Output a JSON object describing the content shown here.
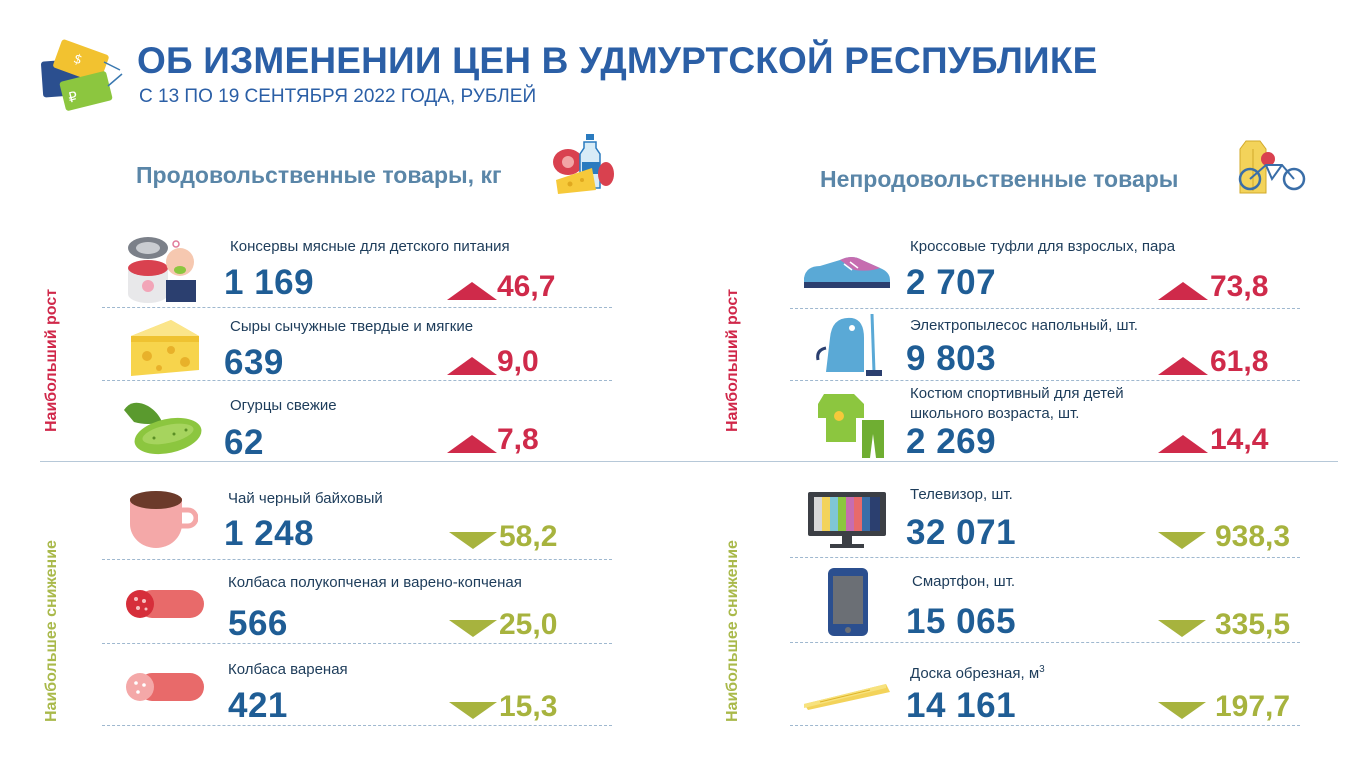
{
  "header": {
    "title": "ОБ ИЗМЕНЕНИИ ЦЕН В УДМУРТСКОЙ РЕСПУБЛИКЕ",
    "subtitle": "С 13 ПО 19 СЕНТЯБРЯ 2022 ГОДА, РУБЛЕЙ",
    "logo_glyphs": [
      "₽",
      "$"
    ]
  },
  "sections": {
    "food": "Продовольственные товары, кг",
    "nonfood": "Непродовольственные товары"
  },
  "side_labels": {
    "growth": "Наибольший рост",
    "decline": "Наибольшее снижение"
  },
  "colors": {
    "title": "#2b5fa6",
    "price": "#1f5d95",
    "increase": "#cf2a4a",
    "decrease": "#a7b33e"
  },
  "food_up": [
    {
      "name": "Консервы мясные для детского питания",
      "price": "1 169",
      "change": "46,7",
      "icon": "canned-baby-food-icon"
    },
    {
      "name": "Сыры сычужные твердые и мягкие",
      "price": "639",
      "change": "9,0",
      "icon": "cheese-icon"
    },
    {
      "name": "Огурцы свежие",
      "price": "62",
      "change": "7,8",
      "icon": "cucumber-icon"
    }
  ],
  "food_down": [
    {
      "name": "Чай черный байховый",
      "price": "1 248",
      "change": "58,2",
      "icon": "tea-cup-icon"
    },
    {
      "name": "Колбаса полукопченая  и варено-копченая",
      "price": "566",
      "change": "25,0",
      "icon": "smoked-sausage-icon"
    },
    {
      "name": "Колбаса вареная",
      "price": "421",
      "change": "15,3",
      "icon": "boiled-sausage-icon"
    }
  ],
  "nonfood_up": [
    {
      "name": "Кроссовые туфли для взрослых, пара",
      "price": "2 707",
      "change": "73,8",
      "icon": "sneaker-icon"
    },
    {
      "name": "Электропылесос напольный, шт.",
      "price": "9 803",
      "change": "61,8",
      "icon": "vacuum-cleaner-icon"
    },
    {
      "name": "Костюм спортивный для детей",
      "name2": "школьного возраста, шт.",
      "price": "2 269",
      "change": "14,4",
      "icon": "tracksuit-icon"
    }
  ],
  "nonfood_down": [
    {
      "name": "Телевизор, шт.",
      "price": "32 071",
      "change": "938,3",
      "icon": "tv-icon"
    },
    {
      "name": "Смартфон, шт.",
      "price": "15 065",
      "change": "335,5",
      "icon": "smartphone-icon"
    },
    {
      "name": "Доска обрезная, м",
      "unit_sup": "3",
      "price": "14 161",
      "change": "197,7",
      "icon": "wood-board-icon"
    }
  ]
}
